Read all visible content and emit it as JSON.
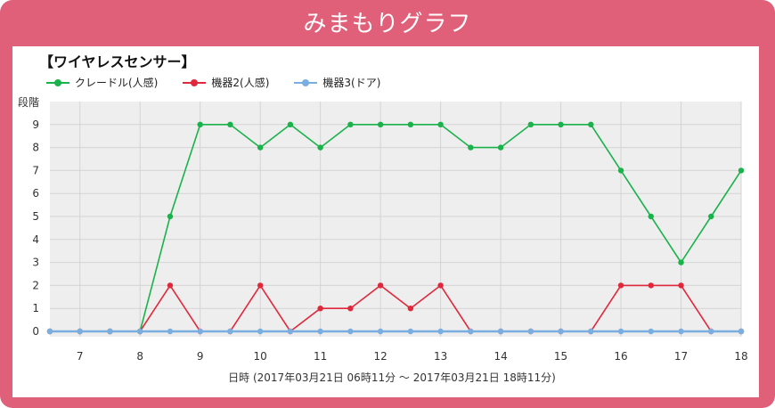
{
  "app": {
    "title": "みまもりグラフ"
  },
  "chart_data": {
    "type": "line",
    "title": "【ワイヤレスセンサー】",
    "ylabel": "段階",
    "xlabel": "日時 (2017年03月21日 06時11分 〜 2017年03月21日 18時11分)",
    "ylim": [
      0,
      10
    ],
    "xlim": [
      6.5,
      18
    ],
    "x_ticks": [
      7,
      8,
      9,
      10,
      11,
      12,
      13,
      14,
      15,
      16,
      17,
      18
    ],
    "y_ticks": [
      0,
      1,
      2,
      3,
      4,
      5,
      6,
      7,
      8,
      9
    ],
    "grid": true,
    "legend_position": "top-left",
    "x": [
      6.5,
      7,
      7.5,
      8,
      8.5,
      9,
      9.5,
      10,
      10.5,
      11,
      11.5,
      12,
      12.5,
      13,
      13.5,
      14,
      14.5,
      15,
      15.5,
      16,
      16.5,
      17,
      17.5,
      18
    ],
    "series": [
      {
        "name": "クレードル(人感)",
        "color": "#1ab24a",
        "values": [
          0,
          0,
          0,
          0,
          5,
          9,
          9,
          8,
          9,
          8,
          9,
          9,
          9,
          9,
          8,
          8,
          9,
          9,
          9,
          7,
          5,
          3,
          5,
          7
        ]
      },
      {
        "name": "機器2(人感)",
        "color": "#e0283c",
        "values": [
          0,
          0,
          0,
          0,
          2,
          0,
          0,
          2,
          0,
          1,
          1,
          2,
          1,
          2,
          0,
          0,
          0,
          0,
          0,
          2,
          2,
          2,
          0,
          0
        ]
      },
      {
        "name": "機器3(ドア)",
        "color": "#7aaee0",
        "values": [
          0,
          0,
          0,
          0,
          0,
          0,
          0,
          0,
          0,
          0,
          0,
          0,
          0,
          0,
          0,
          0,
          0,
          0,
          0,
          0,
          0,
          0,
          0,
          0
        ]
      }
    ]
  }
}
